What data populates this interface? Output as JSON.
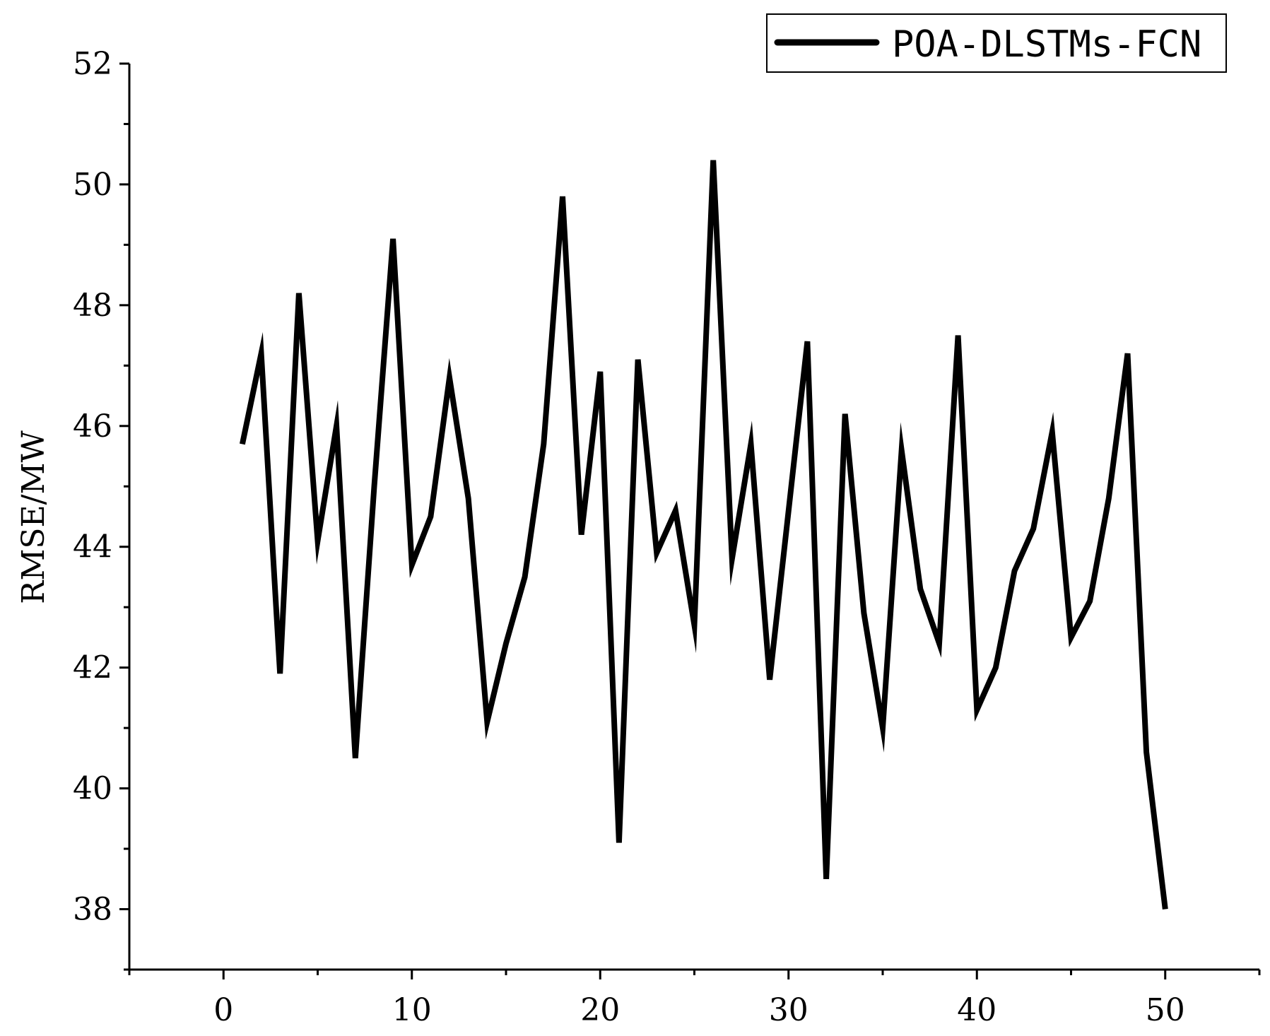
{
  "chart_data": {
    "type": "line",
    "title": "",
    "xlabel": "",
    "ylabel": "RMSE/MW",
    "xlim": [
      -5,
      55
    ],
    "ylim": [
      37,
      52
    ],
    "xticks": [
      0,
      10,
      20,
      30,
      40,
      50
    ],
    "yticks": [
      38,
      40,
      42,
      44,
      46,
      48,
      50,
      52
    ],
    "grid": false,
    "legend_position": "top-right",
    "series": [
      {
        "name": "POA-DLSTMs-FCN",
        "color": "#000000",
        "x": [
          1,
          2,
          3,
          4,
          5,
          6,
          7,
          8,
          9,
          10,
          11,
          12,
          13,
          14,
          15,
          16,
          17,
          18,
          19,
          20,
          21,
          22,
          23,
          24,
          25,
          26,
          27,
          28,
          29,
          30,
          31,
          32,
          33,
          34,
          35,
          36,
          37,
          38,
          39,
          40,
          41,
          42,
          43,
          44,
          45,
          46,
          47,
          48,
          49,
          50
        ],
        "y": [
          45.7,
          47.2,
          41.9,
          48.2,
          44.1,
          46.0,
          40.5,
          45.0,
          49.1,
          43.7,
          44.5,
          46.8,
          44.8,
          41.1,
          42.4,
          43.5,
          45.7,
          49.8,
          44.2,
          46.9,
          39.1,
          47.1,
          43.9,
          44.6,
          42.7,
          50.4,
          43.8,
          45.7,
          41.8,
          44.6,
          47.4,
          38.5,
          46.2,
          42.9,
          41.0,
          45.6,
          43.3,
          42.4,
          47.5,
          41.3,
          42.0,
          43.6,
          44.3,
          45.9,
          42.5,
          43.1,
          44.8,
          47.2,
          40.6,
          38.0
        ]
      }
    ]
  }
}
